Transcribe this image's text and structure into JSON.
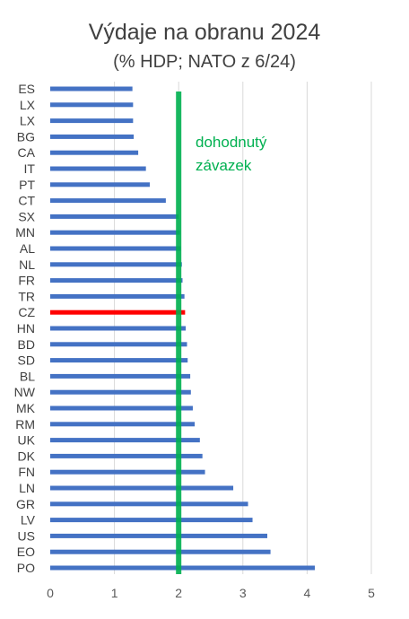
{
  "chart_data": {
    "type": "bar",
    "orientation": "horizontal",
    "title": "Výdaje na obranu 2024",
    "subtitle": "(% HDP; NATO z 6/24)",
    "categories": [
      "ES",
      "LX",
      "LX",
      "BG",
      "CA",
      "IT",
      "PT",
      "CT",
      "SX",
      "MN",
      "AL",
      "NL",
      "FR",
      "TR",
      "CZ",
      "HN",
      "BD",
      "SD",
      "BL",
      "NW",
      "MK",
      "RM",
      "UK",
      "DK",
      "FN",
      "LN",
      "GR",
      "LV",
      "US",
      "EO",
      "PO"
    ],
    "values": [
      1.28,
      1.29,
      1.29,
      1.3,
      1.37,
      1.49,
      1.55,
      1.8,
      2.0,
      2.02,
      2.03,
      2.05,
      2.06,
      2.09,
      2.1,
      2.11,
      2.13,
      2.14,
      2.18,
      2.19,
      2.22,
      2.25,
      2.33,
      2.37,
      2.41,
      2.85,
      3.08,
      3.15,
      3.38,
      3.43,
      4.12
    ],
    "highlight_category": "CZ",
    "xlim": [
      0,
      5
    ],
    "xticks": [
      "0",
      "1",
      "2",
      "3",
      "4",
      "5"
    ],
    "grid": true,
    "reference_line": {
      "value": 2,
      "label_lines": [
        "dohodnutý",
        "závazek"
      ]
    },
    "colors": {
      "bar": "#4472c4",
      "highlight": "#ff0000",
      "reference": "#00b050",
      "reference_text": "#00b050",
      "grid": "#d9d9d9"
    }
  }
}
